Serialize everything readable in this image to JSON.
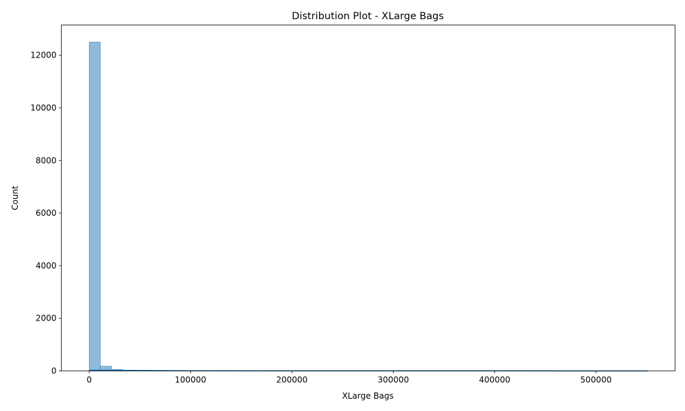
{
  "chart_data": {
    "type": "histogram",
    "title": "Distribution Plot - XLarge Bags",
    "xlabel": "XLarge Bags",
    "ylabel": "Count",
    "xlim": [
      -27500,
      578000
    ],
    "ylim": [
      0,
      13150
    ],
    "x_ticks": [
      0,
      100000,
      200000,
      300000,
      400000,
      500000
    ],
    "y_ticks": [
      0,
      2000,
      4000,
      6000,
      8000,
      10000,
      12000
    ],
    "series": [
      {
        "color": "#1f77b4",
        "bins": [
          {
            "x0": 0,
            "x1": 11000,
            "count": 12500
          },
          {
            "x0": 11000,
            "x1": 22000,
            "count": 180
          },
          {
            "x0": 22000,
            "x1": 33000,
            "count": 60
          },
          {
            "x0": 33000,
            "x1": 44000,
            "count": 25
          },
          {
            "x0": 44000,
            "x1": 55000,
            "count": 12
          },
          {
            "x0": 55000,
            "x1": 66000,
            "count": 8
          },
          {
            "x0": 66000,
            "x1": 77000,
            "count": 5
          },
          {
            "x0": 77000,
            "x1": 88000,
            "count": 4
          },
          {
            "x0": 88000,
            "x1": 99000,
            "count": 3
          },
          {
            "x0": 99000,
            "x1": 110000,
            "count": 2
          },
          {
            "x0": 110000,
            "x1": 200000,
            "count": 6
          },
          {
            "x0": 200000,
            "x1": 300000,
            "count": 3
          },
          {
            "x0": 300000,
            "x1": 400000,
            "count": 2
          },
          {
            "x0": 400000,
            "x1": 500000,
            "count": 1
          },
          {
            "x0": 500000,
            "x1": 551000,
            "count": 1
          }
        ],
        "kde": [
          {
            "x": 0,
            "y": 30
          },
          {
            "x": 100000,
            "y": 5
          },
          {
            "x": 200000,
            "y": 3
          },
          {
            "x": 300000,
            "y": 2
          },
          {
            "x": 400000,
            "y": 2
          },
          {
            "x": 500000,
            "y": 1
          },
          {
            "x": 551000,
            "y": 1
          }
        ]
      }
    ]
  }
}
